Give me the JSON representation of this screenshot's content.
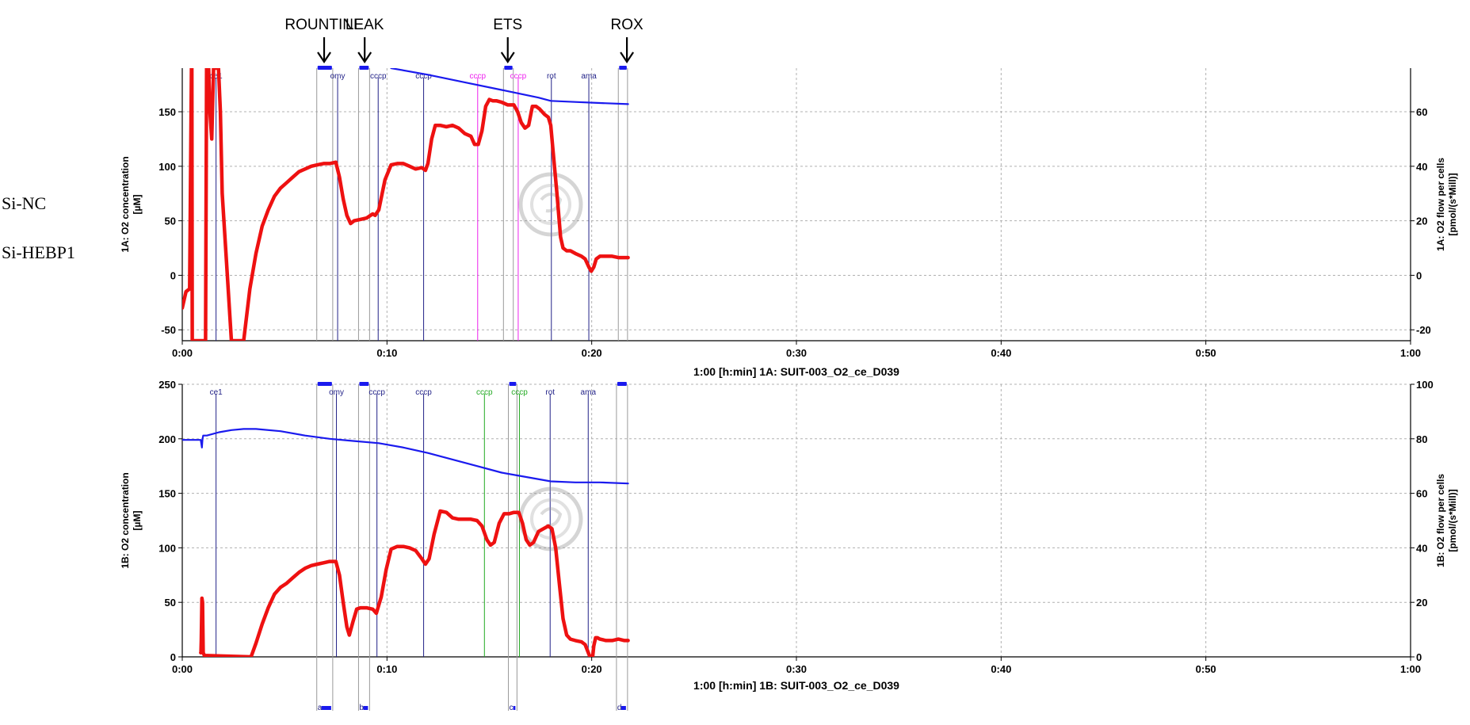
{
  "sample_labels": [
    "Si-NC",
    "Si-HEBP1"
  ],
  "phase_labels": [
    {
      "text": "ROUNTINE",
      "time": 0.1155
    },
    {
      "text": "LEAK",
      "time": 0.1485
    },
    {
      "text": "ETS",
      "time": 0.265
    },
    {
      "text": "ROX",
      "time": 0.362
    }
  ],
  "colors": {
    "o2_concentration": "#1a1aee",
    "o2_flow": "#ee1111",
    "event_default": "#222288",
    "event_magenta": "#ee22ee",
    "event_green": "#22aa22",
    "mark_bar": "#1a1aee",
    "grid": "#b0b0b0"
  },
  "chart_data": [
    {
      "type": "line",
      "caption": "1:00 [h:min] 1A: SUIT-003_O2_ce_D039",
      "xlabel": "[h:min]",
      "x_ticks": [
        "0:00",
        "0:10",
        "0:20",
        "0:30",
        "0:40",
        "0:50",
        "1:00"
      ],
      "xlim": [
        0,
        1
      ],
      "ylabel_left": "1A: O2 concentration [µM]",
      "ylabel_right": "1A: O2 flow per cells [pmol/(s*Mill)]",
      "ylim_left": [
        -60,
        190
      ],
      "ylim_right": [
        -24,
        76
      ],
      "yticks_left": [
        -50,
        0,
        50,
        100,
        150
      ],
      "yticks_right": [
        -20,
        0,
        20,
        40,
        60
      ],
      "events": [
        {
          "label": "ce1",
          "time": 0.0275,
          "color": "#222288"
        },
        {
          "label": "omy",
          "time": 0.1265,
          "color": "#222288"
        },
        {
          "label": "cccp",
          "time": 0.1595,
          "color": "#222288"
        },
        {
          "label": "cccp",
          "time": 0.1965,
          "color": "#222288"
        },
        {
          "label": "cccp",
          "time": 0.2405,
          "color": "#ee22ee"
        },
        {
          "label": "cccp",
          "time": 0.2735,
          "color": "#ee22ee"
        },
        {
          "label": "rot",
          "time": 0.3005,
          "color": "#222288"
        },
        {
          "label": "ama",
          "time": 0.331,
          "color": "#222288"
        }
      ],
      "marks": [
        {
          "start": 0.1095,
          "end": 0.1225
        },
        {
          "start": 0.1435,
          "end": 0.1525
        },
        {
          "start": 0.2615,
          "end": 0.2695
        },
        {
          "start": 0.355,
          "end": 0.3625
        }
      ],
      "series": [
        {
          "name": "O2 concentration",
          "axis": "left",
          "color": "#1a1aee",
          "x": [
            0.17,
            0.2,
            0.23,
            0.26,
            0.29,
            0.3,
            0.32,
            0.34,
            0.363
          ],
          "y": [
            190,
            184,
            177,
            170,
            163,
            160,
            159,
            158,
            157
          ]
        },
        {
          "name": "O2 flow per cells",
          "axis": "right",
          "color": "#ee1111",
          "x": [
            0.0,
            0.003,
            0.006,
            0.0075,
            0.0078,
            0.0081,
            0.0085,
            0.019,
            0.0198,
            0.0206,
            0.0215,
            0.0225,
            0.024,
            0.0255,
            0.028,
            0.0295,
            0.031,
            0.0325,
            0.036,
            0.04,
            0.045,
            0.05,
            0.055,
            0.06,
            0.065,
            0.07,
            0.075,
            0.08,
            0.085,
            0.09,
            0.095,
            0.1,
            0.105,
            0.11,
            0.115,
            0.12,
            0.125,
            0.128,
            0.131,
            0.134,
            0.137,
            0.14,
            0.145,
            0.15,
            0.155,
            0.157,
            0.16,
            0.165,
            0.17,
            0.175,
            0.18,
            0.185,
            0.19,
            0.195,
            0.198,
            0.2,
            0.203,
            0.206,
            0.21,
            0.215,
            0.22,
            0.225,
            0.23,
            0.235,
            0.238,
            0.241,
            0.244,
            0.247,
            0.25,
            0.253,
            0.256,
            0.26,
            0.265,
            0.27,
            0.273,
            0.276,
            0.279,
            0.282,
            0.285,
            0.288,
            0.291,
            0.295,
            0.298,
            0.3,
            0.302,
            0.305,
            0.308,
            0.31,
            0.313,
            0.316,
            0.32,
            0.325,
            0.328,
            0.331,
            0.333,
            0.335,
            0.337,
            0.34,
            0.345,
            0.35,
            0.355,
            0.36,
            0.363
          ],
          "y": [
            -12,
            -6,
            -5,
            76,
            76,
            -24,
            -24,
            -24,
            76,
            76,
            76,
            60,
            50,
            76,
            76,
            76,
            60,
            30,
            5,
            -24,
            -24,
            -24,
            -5,
            8,
            18,
            24,
            29,
            32,
            34,
            36,
            38,
            39,
            40,
            40.5,
            41,
            41,
            41.5,
            36,
            28,
            22,
            19,
            20,
            20.5,
            21,
            22.5,
            22,
            24,
            35,
            40.5,
            41,
            41,
            40,
            39,
            39.5,
            38.5,
            41,
            50,
            55,
            55,
            54.5,
            55,
            54,
            52,
            51,
            48,
            48,
            53,
            62,
            64.5,
            64,
            64,
            63.5,
            62.5,
            62.5,
            60,
            56,
            54,
            55,
            62,
            62,
            61,
            59,
            58,
            55,
            45,
            30,
            14,
            10,
            9,
            9,
            8,
            7,
            6,
            3,
            1.5,
            3,
            6,
            7,
            7,
            7,
            6.5,
            6.5,
            6.5
          ]
        }
      ]
    },
    {
      "type": "line",
      "caption": "1:00 [h:min] 1B: SUIT-003_O2_ce_D039",
      "xlabel": "[h:min]",
      "x_ticks": [
        "0:00",
        "0:10",
        "0:20",
        "0:30",
        "0:40",
        "0:50",
        "1:00"
      ],
      "xlim": [
        0,
        1
      ],
      "ylabel_left": "1B: O2 concentration [µM]",
      "ylabel_right": "1B: O2 flow per cells [pmol/(s*Mill)]",
      "ylim_left": [
        0,
        250
      ],
      "ylim_right": [
        0,
        100
      ],
      "yticks_left": [
        0,
        50,
        100,
        150,
        200,
        250
      ],
      "yticks_right": [
        0,
        20,
        40,
        60,
        80,
        100
      ],
      "events": [
        {
          "label": "ce1",
          "time": 0.0275,
          "color": "#222288"
        },
        {
          "label": "omy",
          "time": 0.1255,
          "color": "#222288"
        },
        {
          "label": "cccp",
          "time": 0.1585,
          "color": "#222288"
        },
        {
          "label": "cccp",
          "time": 0.1965,
          "color": "#222288"
        },
        {
          "label": "cccp",
          "time": 0.246,
          "color": "#22aa22"
        },
        {
          "label": "cccp",
          "time": 0.2745,
          "color": "#22aa22"
        },
        {
          "label": "rot",
          "time": 0.2995,
          "color": "#222288"
        },
        {
          "label": "ama",
          "time": 0.3305,
          "color": "#222288"
        }
      ],
      "marks": [
        {
          "start": 0.1095,
          "end": 0.1225
        },
        {
          "start": 0.1435,
          "end": 0.1525
        },
        {
          "start": 0.2655,
          "end": 0.2725
        },
        {
          "start": 0.3535,
          "end": 0.3625
        }
      ],
      "bottom_marks": [
        {
          "label": "a",
          "start": 0.1095,
          "end": 0.1225
        },
        {
          "label": "b",
          "start": 0.1435,
          "end": 0.1525
        },
        {
          "label": "c",
          "start": 0.2655,
          "end": 0.2725
        },
        {
          "label": "d",
          "start": 0.3535,
          "end": 0.3625
        }
      ],
      "series": [
        {
          "name": "O2 concentration",
          "axis": "left",
          "color": "#1a1aee",
          "x": [
            0.0,
            0.015,
            0.016,
            0.0165,
            0.017,
            0.02,
            0.03,
            0.04,
            0.05,
            0.06,
            0.08,
            0.1,
            0.12,
            0.14,
            0.16,
            0.18,
            0.2,
            0.22,
            0.24,
            0.26,
            0.28,
            0.3,
            0.32,
            0.34,
            0.363
          ],
          "y": [
            199,
            199,
            192,
            200,
            203,
            203,
            206,
            208,
            209,
            209,
            207,
            203,
            200,
            198,
            196,
            192,
            187,
            181,
            175,
            169,
            165,
            161,
            160,
            160,
            159
          ]
        },
        {
          "name": "O2 flow per cells",
          "axis": "right",
          "color": "#ee1111",
          "x": [
            0.015,
            0.0152,
            0.0155,
            0.016,
            0.0165,
            0.017,
            0.018,
            0.056,
            0.06,
            0.065,
            0.07,
            0.075,
            0.08,
            0.085,
            0.09,
            0.095,
            0.1,
            0.105,
            0.11,
            0.115,
            0.12,
            0.125,
            0.128,
            0.131,
            0.134,
            0.136,
            0.139,
            0.142,
            0.145,
            0.15,
            0.155,
            0.158,
            0.162,
            0.166,
            0.17,
            0.175,
            0.18,
            0.185,
            0.19,
            0.195,
            0.198,
            0.201,
            0.205,
            0.21,
            0.215,
            0.22,
            0.225,
            0.23,
            0.235,
            0.24,
            0.244,
            0.248,
            0.251,
            0.254,
            0.258,
            0.262,
            0.266,
            0.27,
            0.274,
            0.277,
            0.28,
            0.283,
            0.286,
            0.29,
            0.294,
            0.298,
            0.301,
            0.304,
            0.307,
            0.31,
            0.313,
            0.316,
            0.32,
            0.325,
            0.328,
            0.331,
            0.3325,
            0.334,
            0.335,
            0.3365,
            0.338,
            0.34,
            0.345,
            0.35,
            0.355,
            0.36,
            0.363
          ],
          "y": [
            1.5,
            1.5,
            6,
            21.5,
            20,
            1.5,
            0.5,
            0,
            5,
            12,
            18,
            23,
            25.5,
            27,
            29,
            31,
            32.5,
            33.5,
            34,
            34.5,
            35,
            35,
            30,
            20,
            11,
            8,
            13,
            17.5,
            18,
            18,
            17.5,
            16,
            22,
            32,
            39.5,
            40.5,
            40.5,
            40,
            39,
            36,
            34,
            36,
            45,
            53.5,
            53,
            51,
            50.5,
            50.5,
            50.5,
            50,
            48,
            43,
            41,
            42,
            49,
            52.5,
            52.5,
            53,
            53,
            49,
            43,
            41,
            42,
            46,
            47,
            48,
            47,
            40,
            27,
            14,
            8,
            6.5,
            6,
            5.5,
            4.5,
            1,
            -0.5,
            -0.5,
            4,
            7,
            7,
            6.5,
            6,
            6,
            6.5,
            6,
            6
          ]
        }
      ]
    }
  ]
}
